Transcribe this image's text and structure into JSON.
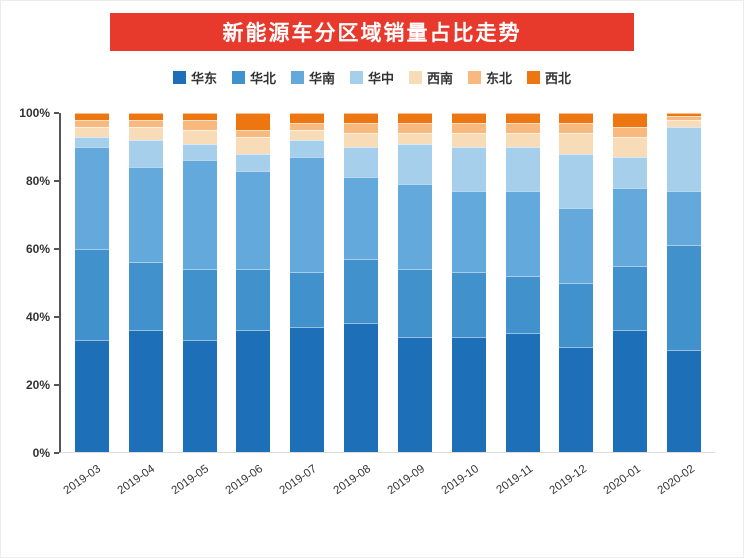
{
  "banner": {
    "background": "#e8392d",
    "title_color": "#ffffff"
  },
  "chart_data": {
    "type": "bar",
    "stacked": true,
    "percent": true,
    "title": "新能源车分区域销量占比走势",
    "legend_position": "top",
    "grid": false,
    "xlabel": "",
    "ylabel": "",
    "ylim": [
      0,
      100
    ],
    "yticks": [
      "0%",
      "20%",
      "40%",
      "60%",
      "80%",
      "100%"
    ],
    "categories": [
      "2019-03",
      "2019-04",
      "2019-05",
      "2019-06",
      "2019-07",
      "2019-08",
      "2019-09",
      "2019-10",
      "2019-11",
      "2019-12",
      "2020-01",
      "2020-02"
    ],
    "series": [
      {
        "name": "华东",
        "color": "#1d6fb8",
        "values": [
          33,
          36,
          33,
          36,
          37,
          38,
          34,
          34,
          35,
          31,
          36,
          30
        ]
      },
      {
        "name": "华北",
        "color": "#4191cd",
        "values": [
          27,
          20,
          21,
          18,
          16,
          19,
          20,
          19,
          17,
          19,
          19,
          31
        ]
      },
      {
        "name": "华南",
        "color": "#64a9dc",
        "values": [
          30,
          28,
          32,
          29,
          34,
          24,
          25,
          24,
          25,
          22,
          23,
          16
        ]
      },
      {
        "name": "华中",
        "color": "#a6cfeb",
        "values": [
          3,
          8,
          5,
          5,
          5,
          9,
          12,
          13,
          13,
          16,
          9,
          19
        ]
      },
      {
        "name": "西南",
        "color": "#f8dcb8",
        "values": [
          3,
          4,
          4,
          5,
          3,
          4,
          3,
          4,
          4,
          6,
          6,
          2
        ]
      },
      {
        "name": "东北",
        "color": "#f7b97e",
        "values": [
          2,
          2,
          3,
          2,
          2,
          3,
          3,
          3,
          3,
          3,
          3,
          1
        ]
      },
      {
        "name": "西北",
        "color": "#ee7611",
        "values": [
          2,
          2,
          2,
          5,
          3,
          3,
          3,
          3,
          3,
          3,
          4,
          1
        ]
      }
    ]
  }
}
